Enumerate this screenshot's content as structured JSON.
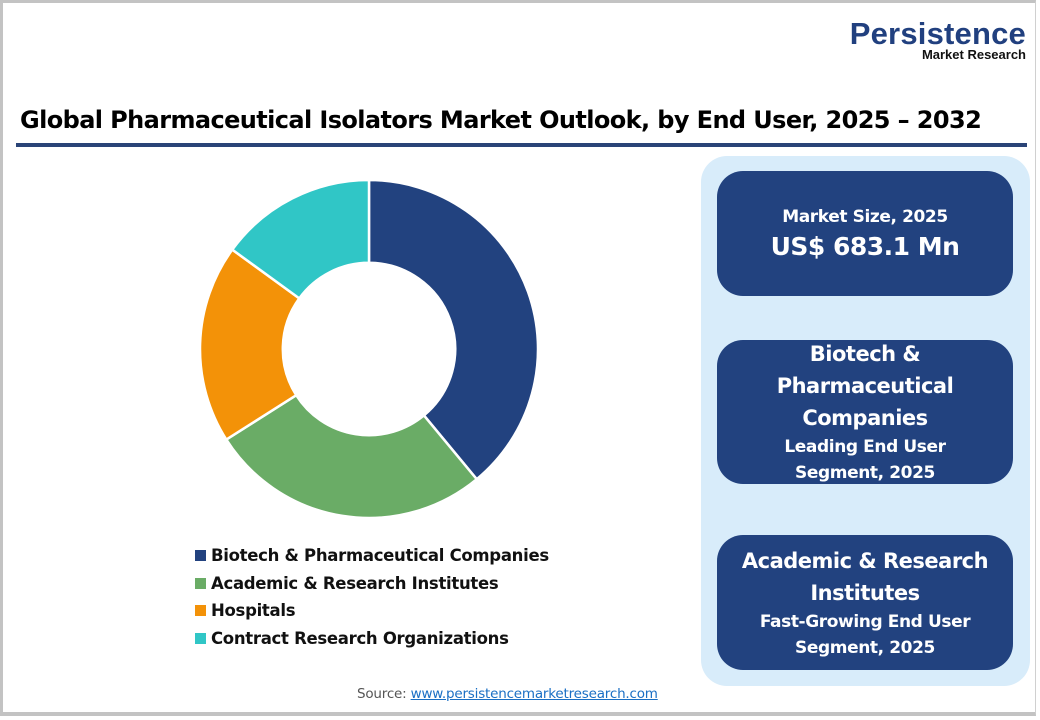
{
  "logo": {
    "main": "Persistence",
    "sub": "Market Research"
  },
  "title": "Global Pharmaceutical Isolators Market Outlook, by End User, 2025 – 2032",
  "chart_data": {
    "type": "pie",
    "variant": "donut",
    "title": "Global Pharmaceutical Isolators Market Outlook, by End User, 2025 – 2032",
    "categories": [
      "Biotech & Pharmaceutical Companies",
      "Academic & Research Institutes",
      "Hospitals",
      "Contract Research Organizations"
    ],
    "values": [
      39,
      27,
      19,
      15
    ],
    "unit": "% share (estimated from slice angles)",
    "colors": [
      "#22427f",
      "#6aac66",
      "#f39208",
      "#30c6c6"
    ],
    "start_angle_deg": 0,
    "direction": "clockwise",
    "inner_radius_ratio": 0.51,
    "legend_position": "bottom"
  },
  "legend": [
    {
      "label": "Biotech & Pharmaceutical Companies",
      "color": "#22427f"
    },
    {
      "label": "Academic & Research Institutes",
      "color": "#6aac66"
    },
    {
      "label": "Hospitals",
      "color": "#f39208"
    },
    {
      "label": "Contract Research Organizations",
      "color": "#30c6c6"
    }
  ],
  "cards": {
    "market_size": {
      "label": "Market Size, 2025",
      "value": "US$ 683.1 Mn"
    },
    "leading": {
      "segment_line1": "Biotech &",
      "segment_line2": "Pharmaceutical",
      "segment_line3": "Companies",
      "desc_line1": "Leading End User",
      "desc_line2": "Segment, 2025"
    },
    "fast_growing": {
      "segment_line1": "Academic & Research",
      "segment_line2": "Institutes",
      "desc_line1": "Fast-Growing End User",
      "desc_line2": "Segment, 2025"
    }
  },
  "source": {
    "label": "Source:",
    "link": "www.persistencemarketresearch.com"
  },
  "colors": {
    "brand_navy": "#22427f",
    "panel_bg": "#d8ecfa",
    "rule": "#2a4477"
  }
}
